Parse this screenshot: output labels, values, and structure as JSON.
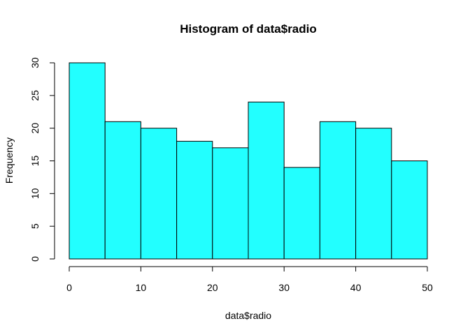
{
  "chart_data": {
    "type": "bar",
    "title": "Histogram of data$radio",
    "xlabel": "data$radio",
    "ylabel": "Frequency",
    "bins": [
      {
        "start": 0,
        "end": 5,
        "count": 30
      },
      {
        "start": 5,
        "end": 10,
        "count": 21
      },
      {
        "start": 10,
        "end": 15,
        "count": 20
      },
      {
        "start": 15,
        "end": 20,
        "count": 18
      },
      {
        "start": 20,
        "end": 25,
        "count": 17
      },
      {
        "start": 25,
        "end": 30,
        "count": 24
      },
      {
        "start": 30,
        "end": 35,
        "count": 14
      },
      {
        "start": 35,
        "end": 40,
        "count": 21
      },
      {
        "start": 40,
        "end": 45,
        "count": 20
      },
      {
        "start": 45,
        "end": 50,
        "count": 15
      }
    ],
    "xlim": [
      0,
      50
    ],
    "ylim": [
      0,
      30
    ],
    "x_ticks": [
      0,
      10,
      20,
      30,
      40,
      50
    ],
    "y_ticks": [
      0,
      5,
      10,
      15,
      20,
      25,
      30
    ],
    "bar_color": "#22FFFF",
    "grid": false,
    "legend": "none"
  }
}
